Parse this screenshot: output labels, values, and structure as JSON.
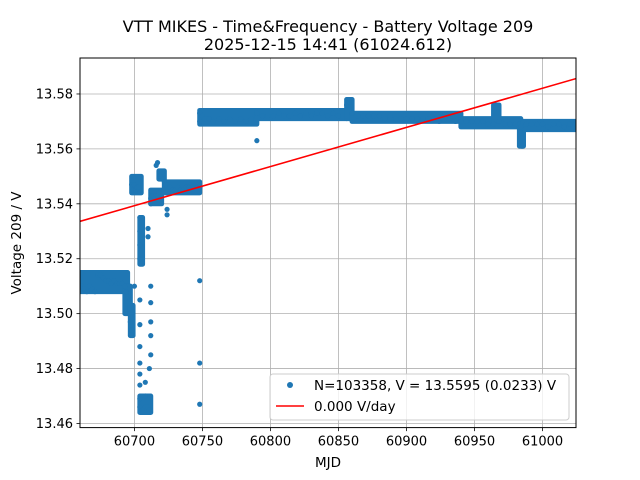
{
  "chart_data": {
    "type": "scatter",
    "title": "VTT MIKES - Time&Frequency - Battery Voltage 209",
    "subtitle": "2025-12-15 14:41 (61024.612)",
    "xlabel": "MJD",
    "ylabel": "Voltage 209 / V",
    "xlim": [
      60660,
      61024.6
    ],
    "ylim": [
      13.4585,
      13.5931
    ],
    "x_ticks": [
      60700,
      60750,
      60800,
      60850,
      60900,
      60950,
      61000
    ],
    "y_ticks": [
      13.46,
      13.48,
      13.5,
      13.52,
      13.54,
      13.56,
      13.58
    ],
    "grid": true,
    "legend_position": "lower-right",
    "series": [
      {
        "name": "N=103358, V = 13.5595 (0.0233) V",
        "kind": "points",
        "color": "#1f77b4",
        "points": [
          [
            60661,
            13.51
          ],
          [
            60663,
            13.509
          ],
          [
            60665,
            13.508
          ],
          [
            60667,
            13.51
          ],
          [
            60669,
            13.509
          ],
          [
            60671,
            13.508
          ],
          [
            60673,
            13.514
          ],
          [
            60675,
            13.514
          ],
          [
            60677,
            13.513
          ],
          [
            60679,
            13.512
          ],
          [
            60681,
            13.512
          ],
          [
            60683,
            13.511
          ],
          [
            60685,
            13.512
          ],
          [
            60687,
            13.511
          ],
          [
            60689,
            13.511
          ],
          [
            60691,
            13.511
          ],
          [
            60693,
            13.51
          ],
          [
            60694,
            13.508
          ],
          [
            60695,
            13.506
          ],
          [
            60697,
            13.497
          ],
          [
            60698,
            13.494
          ],
          [
            60698,
            13.547
          ],
          [
            60699,
            13.545
          ],
          [
            60700,
            13.547
          ],
          [
            60700,
            13.51
          ],
          [
            60701,
            13.545
          ],
          [
            60702,
            13.546
          ],
          [
            60703,
            13.546
          ],
          [
            60704,
            13.535
          ],
          [
            60704,
            13.53
          ],
          [
            60704,
            13.525
          ],
          [
            60704,
            13.52
          ],
          [
            60704,
            13.505
          ],
          [
            60704,
            13.496
          ],
          [
            60704,
            13.488
          ],
          [
            60704,
            13.482
          ],
          [
            60704,
            13.478
          ],
          [
            60704,
            13.474
          ],
          [
            60704,
            13.469
          ],
          [
            60704,
            13.466
          ],
          [
            60706,
            13.465
          ],
          [
            60707,
            13.465
          ],
          [
            60708,
            13.466
          ],
          [
            60709,
            13.465
          ],
          [
            60710,
            13.466
          ],
          [
            60711,
            13.465
          ],
          [
            60708,
            13.47
          ],
          [
            60708,
            13.475
          ],
          [
            60710,
            13.531
          ],
          [
            60710,
            13.528
          ],
          [
            60711,
            13.48
          ],
          [
            60712,
            13.542
          ],
          [
            60712,
            13.54
          ],
          [
            60712,
            13.51
          ],
          [
            60712,
            13.504
          ],
          [
            60712,
            13.497
          ],
          [
            60712,
            13.492
          ],
          [
            60712,
            13.485
          ],
          [
            60713,
            13.543
          ],
          [
            60714,
            13.543
          ],
          [
            60715,
            13.542
          ],
          [
            60716,
            13.543
          ],
          [
            60717,
            13.543
          ],
          [
            60718,
            13.544
          ],
          [
            60716,
            13.554
          ],
          [
            60717,
            13.555
          ],
          [
            60719,
            13.55
          ],
          [
            60721,
            13.549
          ],
          [
            60722,
            13.548
          ],
          [
            60723,
            13.547
          ],
          [
            60724,
            13.538
          ],
          [
            60724,
            13.536
          ],
          [
            60726,
            13.546
          ],
          [
            60728,
            13.545
          ],
          [
            60730,
            13.545
          ],
          [
            60732,
            13.546
          ],
          [
            60734,
            13.545
          ],
          [
            60736,
            13.545
          ],
          [
            60738,
            13.546
          ],
          [
            60740,
            13.546
          ],
          [
            60742,
            13.546
          ],
          [
            60744,
            13.546
          ],
          [
            60746,
            13.546
          ],
          [
            60748,
            13.546
          ],
          [
            60748,
            13.512
          ],
          [
            60748,
            13.482
          ],
          [
            60748,
            13.467
          ],
          [
            60748,
            13.573
          ],
          [
            60748,
            13.57
          ],
          [
            60750,
            13.572
          ],
          [
            60752,
            13.571
          ],
          [
            60755,
            13.571
          ],
          [
            60758,
            13.57
          ],
          [
            60762,
            13.571
          ],
          [
            60766,
            13.57
          ],
          [
            60770,
            13.571
          ],
          [
            60774,
            13.57
          ],
          [
            60778,
            13.571
          ],
          [
            60782,
            13.57
          ],
          [
            60786,
            13.571
          ],
          [
            60790,
            13.563
          ],
          [
            60790,
            13.573
          ],
          [
            60794,
            13.572
          ],
          [
            60798,
            13.572
          ],
          [
            60802,
            13.572
          ],
          [
            60806,
            13.573
          ],
          [
            60810,
            13.572
          ],
          [
            60814,
            13.572
          ],
          [
            60818,
            13.573
          ],
          [
            60822,
            13.572
          ],
          [
            60826,
            13.573
          ],
          [
            60830,
            13.572
          ],
          [
            60834,
            13.573
          ],
          [
            60838,
            13.573
          ],
          [
            60842,
            13.572
          ],
          [
            60846,
            13.573
          ],
          [
            60850,
            13.572
          ],
          [
            60856,
            13.576
          ],
          [
            60858,
            13.577
          ],
          [
            60860,
            13.573
          ],
          [
            60864,
            13.572
          ],
          [
            60868,
            13.572
          ],
          [
            60872,
            13.572
          ],
          [
            60876,
            13.572
          ],
          [
            60880,
            13.572
          ],
          [
            60884,
            13.571
          ],
          [
            60888,
            13.572
          ],
          [
            60892,
            13.571
          ],
          [
            60896,
            13.571
          ],
          [
            60900,
            13.571
          ],
          [
            60904,
            13.571
          ],
          [
            60908,
            13.571
          ],
          [
            60912,
            13.571
          ],
          [
            60916,
            13.571
          ],
          [
            60920,
            13.571
          ],
          [
            60924,
            13.57
          ],
          [
            60928,
            13.571
          ],
          [
            60932,
            13.571
          ],
          [
            60936,
            13.57
          ],
          [
            60940,
            13.57
          ],
          [
            60944,
            13.57
          ],
          [
            60948,
            13.57
          ],
          [
            60952,
            13.57
          ],
          [
            60956,
            13.57
          ],
          [
            60960,
            13.569
          ],
          [
            60964,
            13.569
          ],
          [
            60966,
            13.575
          ],
          [
            60968,
            13.57
          ],
          [
            60972,
            13.569
          ],
          [
            60976,
            13.569
          ],
          [
            60980,
            13.569
          ],
          [
            60984,
            13.562
          ],
          [
            60984,
            13.564
          ],
          [
            60984,
            13.566
          ],
          [
            60984,
            13.568
          ],
          [
            60985,
            13.561
          ],
          [
            60988,
            13.569
          ],
          [
            60992,
            13.569
          ],
          [
            60996,
            13.569
          ],
          [
            61000,
            13.569
          ],
          [
            61004,
            13.568
          ],
          [
            61008,
            13.569
          ],
          [
            61012,
            13.569
          ],
          [
            61016,
            13.568
          ],
          [
            61020,
            13.569
          ],
          [
            61024,
            13.569
          ]
        ],
        "streaks": [
          [
            60660,
            60695,
            13.508,
            13.515
          ],
          [
            60693,
            60697,
            13.5,
            13.51
          ],
          [
            60697,
            60699,
            13.492,
            13.503
          ],
          [
            60698,
            60705,
            13.544,
            13.55
          ],
          [
            60704,
            60706,
            13.518,
            13.535
          ],
          [
            60704,
            60712,
            13.464,
            13.47
          ],
          [
            60712,
            60720,
            13.54,
            13.545
          ],
          [
            60718,
            60722,
            13.549,
            13.552
          ],
          [
            60722,
            60748,
            13.544,
            13.548
          ],
          [
            60748,
            60790,
            13.569,
            13.574
          ],
          [
            60790,
            60856,
            13.571,
            13.574
          ],
          [
            60856,
            60860,
            13.571,
            13.578
          ],
          [
            60860,
            60940,
            13.57,
            13.573
          ],
          [
            60940,
            60984,
            13.568,
            13.571
          ],
          [
            60964,
            60968,
            13.57,
            13.576
          ],
          [
            60983,
            60986,
            13.561,
            13.569
          ],
          [
            60986,
            61024.6,
            13.567,
            13.57
          ]
        ]
      },
      {
        "name": "0.000 V/day",
        "kind": "trend-line",
        "color": "#ff0000",
        "x": [
          60660,
          61024.6
        ],
        "y": [
          13.5336,
          13.5856
        ]
      }
    ]
  }
}
